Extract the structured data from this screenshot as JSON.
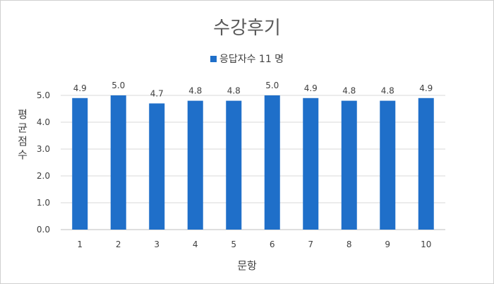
{
  "chart_data": {
    "type": "bar",
    "title": "수강후기",
    "xlabel": "문항",
    "ylabel": "평균 점수",
    "categories": [
      "1",
      "2",
      "3",
      "4",
      "5",
      "6",
      "7",
      "8",
      "9",
      "10"
    ],
    "series": [
      {
        "name": "응답자수 11 명",
        "values": [
          4.9,
          5.0,
          4.7,
          4.8,
          4.8,
          5.0,
          4.9,
          4.8,
          4.8,
          4.9
        ],
        "color": "#1f6fc9"
      }
    ],
    "value_labels": [
      "4.9",
      "5.0",
      "4.7",
      "4.8",
      "4.8",
      "5.0",
      "4.9",
      "4.8",
      "4.8",
      "4.9"
    ],
    "yticks": [
      "0.0",
      "1.0",
      "2.0",
      "3.0",
      "4.0",
      "5.0"
    ],
    "ylim": [
      0,
      5
    ],
    "grid": true,
    "legend_position": "top"
  }
}
